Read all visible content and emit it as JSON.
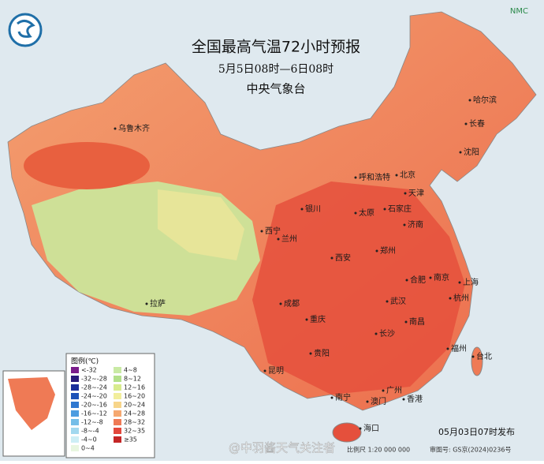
{
  "header": {
    "title": "全国最高气温72小时预报",
    "subtitle": "5月5日08时—6日08时",
    "issuer": "中央气象台",
    "logo_text": "NMC"
  },
  "legend": {
    "title": "图例(℃)",
    "items": [
      {
        "label": "<-32",
        "color": "#7a1c8a"
      },
      {
        "label": "-32~-28",
        "color": "#2a1a7a"
      },
      {
        "label": "-28~-24",
        "color": "#1b2f9a"
      },
      {
        "label": "-24~-20",
        "color": "#1d52b8"
      },
      {
        "label": "-20~-16",
        "color": "#2f78d0"
      },
      {
        "label": "-16~-12",
        "color": "#4d9ce0"
      },
      {
        "label": "-12~-8",
        "color": "#74bde8"
      },
      {
        "label": "-8~-4",
        "color": "#a2d8ef"
      },
      {
        "label": "-4~0",
        "color": "#cdeef5"
      },
      {
        "label": "0~4",
        "color": "#e8f6e0"
      },
      {
        "label": "4~8",
        "color": "#c9eaa4"
      },
      {
        "label": "8~12",
        "color": "#b3e08a"
      },
      {
        "label": "12~16",
        "color": "#d8ec8e"
      },
      {
        "label": "16~20",
        "color": "#f2ee9c"
      },
      {
        "label": "20~24",
        "color": "#f7d58a"
      },
      {
        "label": "24~28",
        "color": "#f5a870"
      },
      {
        "label": "28~32",
        "color": "#ef7a55"
      },
      {
        "label": "32~35",
        "color": "#e3483c"
      },
      {
        "label": "≥35",
        "color": "#c42626"
      }
    ]
  },
  "cities": [
    "乌鲁木齐",
    "哈尔滨",
    "长春",
    "沈阳",
    "呼和浩特",
    "北京",
    "天津",
    "银川",
    "太原",
    "石家庄",
    "济南",
    "西宁",
    "兰州",
    "西安",
    "郑州",
    "合肥",
    "南京",
    "上海",
    "杭州",
    "成都",
    "武汉",
    "重庆",
    "长沙",
    "南昌",
    "拉萨",
    "贵阳",
    "福州",
    "台北",
    "昆明",
    "南宁",
    "广州",
    "澳门",
    "香港",
    "海口"
  ],
  "footer": {
    "issued": "05月03日07时发布",
    "scale": "比例尺 1:20 000 000",
    "approval": "审图号: GS京(2024)0236号",
    "watermark": "@中羽酱天气关注者"
  }
}
